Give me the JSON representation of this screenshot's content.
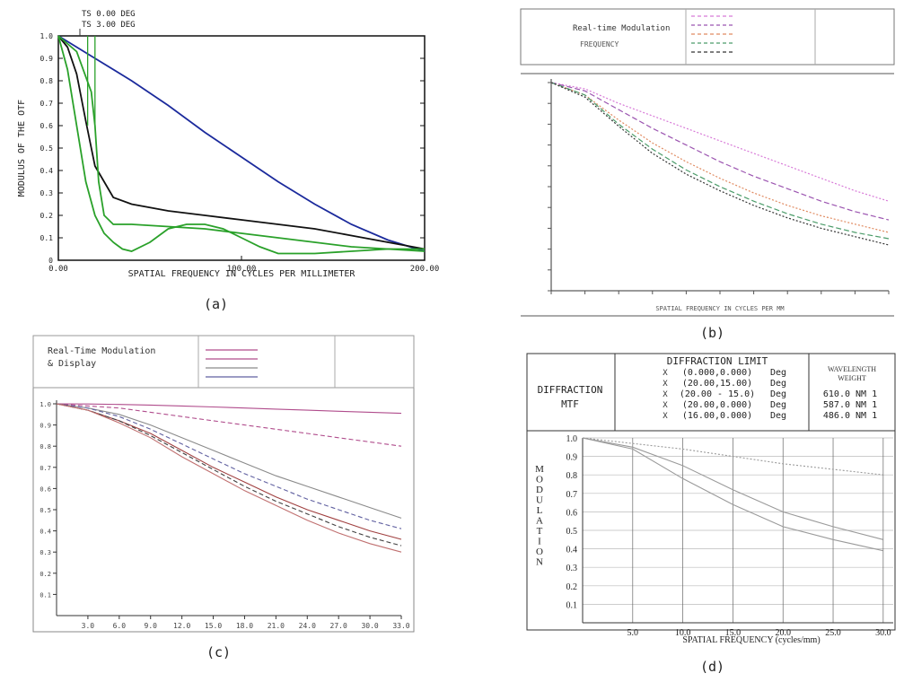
{
  "captions": {
    "a": "(a)",
    "b": "(b)",
    "c": "(c)",
    "d": "(d)"
  },
  "chart_data": [
    {
      "id": "a",
      "type": "line",
      "xlabel": "SPATIAL FREQUENCY IN CYCLES PER MILLIMETER",
      "ylabel": "MODULUS OF THE OTF",
      "xlim": [
        0,
        200
      ],
      "ylim": [
        0,
        1
      ],
      "x_tick_labels": [
        "0.00",
        "100.00",
        "200.00"
      ],
      "y_tick_labels": [
        "0",
        "0.1",
        "0.2",
        "0.3",
        "0.4",
        "0.5",
        "0.6",
        "0.7",
        "0.8",
        "0.9",
        "1.0"
      ],
      "header_labels": [
        "TS 0.00 DEG",
        "TS 3.00 DEG"
      ],
      "series": [
        {
          "color": "#1b2a9c",
          "x": [
            0,
            20,
            40,
            60,
            80,
            100,
            120,
            140,
            160,
            180,
            200
          ],
          "y": [
            1.0,
            0.9,
            0.8,
            0.69,
            0.57,
            0.46,
            0.35,
            0.25,
            0.16,
            0.09,
            0.04
          ]
        },
        {
          "color": "#111111",
          "x": [
            0,
            5,
            10,
            15,
            20,
            30,
            40,
            60,
            80,
            100,
            120,
            140,
            160,
            180,
            200
          ],
          "y": [
            1.0,
            0.95,
            0.83,
            0.62,
            0.42,
            0.28,
            0.25,
            0.22,
            0.2,
            0.18,
            0.16,
            0.14,
            0.11,
            0.08,
            0.05
          ]
        },
        {
          "color": "#2aa12a",
          "x": [
            0,
            5,
            10,
            15,
            20,
            25,
            30,
            35,
            40,
            50,
            60,
            70,
            80,
            90,
            100,
            110,
            120,
            140,
            160,
            180,
            200
          ],
          "y": [
            1.0,
            0.85,
            0.6,
            0.35,
            0.2,
            0.12,
            0.08,
            0.05,
            0.04,
            0.08,
            0.14,
            0.16,
            0.16,
            0.14,
            0.1,
            0.06,
            0.03,
            0.03,
            0.04,
            0.05,
            0.05
          ]
        },
        {
          "color": "#2aa12a",
          "x": [
            0,
            10,
            18,
            20,
            22,
            25,
            30,
            40,
            60,
            80,
            100,
            120,
            140,
            160,
            180,
            200
          ],
          "y": [
            1.0,
            0.93,
            0.75,
            0.6,
            0.35,
            0.2,
            0.16,
            0.16,
            0.15,
            0.14,
            0.12,
            0.1,
            0.08,
            0.06,
            0.05,
            0.04
          ]
        }
      ]
    },
    {
      "id": "b",
      "type": "line",
      "header_title": "Real-time Modulation",
      "header_sub": "FREQUENCY",
      "xlabel": "SPATIAL FREQUENCY IN CYCLES PER MM",
      "xlim": [
        0,
        1
      ],
      "ylim": [
        0,
        1
      ],
      "series": [
        {
          "color": "#d87ad8",
          "x": [
            0,
            0.1,
            0.2,
            0.3,
            0.4,
            0.5,
            0.6,
            0.7,
            0.8,
            0.9,
            1.0
          ],
          "y": [
            1.0,
            0.97,
            0.9,
            0.84,
            0.78,
            0.72,
            0.66,
            0.6,
            0.54,
            0.48,
            0.43
          ]
        },
        {
          "color": "#9b54b0",
          "x": [
            0,
            0.1,
            0.2,
            0.3,
            0.4,
            0.5,
            0.6,
            0.7,
            0.8,
            0.9,
            1.0
          ],
          "y": [
            1.0,
            0.96,
            0.87,
            0.78,
            0.7,
            0.62,
            0.55,
            0.49,
            0.43,
            0.38,
            0.34
          ]
        },
        {
          "color": "#e08a60",
          "x": [
            0,
            0.1,
            0.2,
            0.3,
            0.4,
            0.5,
            0.6,
            0.7,
            0.8,
            0.9,
            1.0
          ],
          "y": [
            1.0,
            0.94,
            0.82,
            0.71,
            0.62,
            0.54,
            0.47,
            0.41,
            0.36,
            0.32,
            0.28
          ]
        },
        {
          "color": "#4c9c6a",
          "x": [
            0,
            0.1,
            0.2,
            0.3,
            0.4,
            0.5,
            0.6,
            0.7,
            0.8,
            0.9,
            1.0
          ],
          "y": [
            1.0,
            0.94,
            0.8,
            0.68,
            0.58,
            0.5,
            0.43,
            0.37,
            0.32,
            0.28,
            0.25
          ]
        },
        {
          "color": "#333333",
          "x": [
            0,
            0.1,
            0.2,
            0.3,
            0.4,
            0.5,
            0.6,
            0.7,
            0.8,
            0.9,
            1.0
          ],
          "y": [
            1.0,
            0.93,
            0.79,
            0.66,
            0.56,
            0.48,
            0.41,
            0.35,
            0.3,
            0.26,
            0.22
          ]
        }
      ]
    },
    {
      "id": "c",
      "type": "line",
      "header_title": "Real-Time Modulation",
      "header_sub": "& Display",
      "xlim": [
        0,
        33
      ],
      "ylim": [
        0,
        1
      ],
      "x_tick_labels": [
        "3.0",
        "6.0",
        "9.0",
        "12.0",
        "15.0",
        "18.0",
        "21.0",
        "24.0",
        "27.0",
        "30.0",
        "33.0"
      ],
      "y_tick_labels": [
        "1.0",
        "0.9",
        "0.8",
        "0.7",
        "0.6",
        "0.5",
        "0.4",
        "0.3",
        "0.2",
        "0.1"
      ],
      "series": [
        {
          "color": "#b04c8c",
          "x": [
            0,
            3,
            6,
            9,
            12,
            15,
            18,
            21,
            24,
            27,
            30,
            33
          ],
          "y": [
            1.0,
            0.999,
            0.997,
            0.994,
            0.99,
            0.985,
            0.98,
            0.975,
            0.97,
            0.965,
            0.96,
            0.955
          ]
        },
        {
          "color": "#b04c8c",
          "x": [
            0,
            3,
            6,
            9,
            12,
            15,
            18,
            21,
            24,
            27,
            30,
            33
          ],
          "y": [
            1.0,
            0.99,
            0.98,
            0.96,
            0.94,
            0.92,
            0.9,
            0.88,
            0.86,
            0.84,
            0.82,
            0.8
          ]
        },
        {
          "color": "#8a8a8a",
          "x": [
            0,
            3,
            6,
            9,
            12,
            15,
            18,
            21,
            24,
            27,
            30,
            33
          ],
          "y": [
            1.0,
            0.98,
            0.95,
            0.9,
            0.84,
            0.78,
            0.72,
            0.66,
            0.61,
            0.56,
            0.51,
            0.46
          ]
        },
        {
          "color": "#6060a0",
          "x": [
            0,
            3,
            6,
            9,
            12,
            15,
            18,
            21,
            24,
            27,
            30,
            33
          ],
          "y": [
            1.0,
            0.98,
            0.94,
            0.88,
            0.81,
            0.74,
            0.67,
            0.61,
            0.55,
            0.5,
            0.45,
            0.41
          ]
        },
        {
          "color": "#a04040",
          "x": [
            0,
            3,
            6,
            9,
            12,
            15,
            18,
            21,
            24,
            27,
            30,
            33
          ],
          "y": [
            1.0,
            0.97,
            0.92,
            0.86,
            0.78,
            0.7,
            0.63,
            0.56,
            0.5,
            0.45,
            0.4,
            0.36
          ]
        },
        {
          "color": "#404040",
          "x": [
            0,
            3,
            6,
            9,
            12,
            15,
            18,
            21,
            24,
            27,
            30,
            33
          ],
          "y": [
            1.0,
            0.97,
            0.92,
            0.85,
            0.77,
            0.69,
            0.61,
            0.54,
            0.48,
            0.42,
            0.37,
            0.33
          ]
        },
        {
          "color": "#c07070",
          "x": [
            0,
            3,
            6,
            9,
            12,
            15,
            18,
            21,
            24,
            27,
            30,
            33
          ],
          "y": [
            1.0,
            0.97,
            0.91,
            0.84,
            0.75,
            0.67,
            0.59,
            0.52,
            0.45,
            0.39,
            0.34,
            0.3
          ]
        }
      ]
    },
    {
      "id": "d",
      "type": "line",
      "header_title_lines": [
        "DIFFRACTION",
        "MTF"
      ],
      "header_title_right": "DIFFRACTION LIMIT",
      "wavelength_header": "WAVELENGTH",
      "weight_header": "WEIGHT",
      "legend_rows": [
        {
          "label": "(0.000,0.000)",
          "unit": "Deg",
          "wave": ""
        },
        {
          "label": "(20.00,15.00)",
          "unit": "Deg",
          "wave": ""
        },
        {
          "label": "(20.00 - 15.0)",
          "unit": "Deg",
          "wave": "610.0 NM 1"
        },
        {
          "label": "(20.00,0.000)",
          "unit": "Deg",
          "wave": "587.0 NM 1"
        },
        {
          "label": "(16.00,0.000)",
          "unit": "Deg",
          "wave": "486.0 NM 1"
        }
      ],
      "ylabel": "MODULATION",
      "xlabel": "SPATIAL FREQUENCY (cycles/mm)",
      "xlim": [
        0,
        31
      ],
      "ylim": [
        0,
        1
      ],
      "x_tick_labels": [
        "5.0",
        "10.0",
        "15.0",
        "20.0",
        "25.0",
        "30.0"
      ],
      "y_tick_labels": [
        "1.0",
        "0.9",
        "0.8",
        "0.7",
        "0.6",
        "0.5",
        "0.4",
        "0.3",
        "0.2",
        "0.1"
      ],
      "series": [
        {
          "color": "#9a9a9a",
          "x": [
            0,
            5,
            10,
            15,
            20,
            25,
            30
          ],
          "y": [
            1.0,
            0.97,
            0.94,
            0.9,
            0.86,
            0.83,
            0.8
          ]
        },
        {
          "color": "#9a9a9a",
          "x": [
            0,
            5,
            10,
            15,
            20,
            25,
            30
          ],
          "y": [
            1.0,
            0.95,
            0.85,
            0.72,
            0.6,
            0.52,
            0.45
          ]
        },
        {
          "color": "#9a9a9a",
          "x": [
            0,
            5,
            10,
            15,
            20,
            25,
            30
          ],
          "y": [
            1.0,
            0.94,
            0.78,
            0.64,
            0.52,
            0.45,
            0.39
          ]
        }
      ]
    }
  ]
}
